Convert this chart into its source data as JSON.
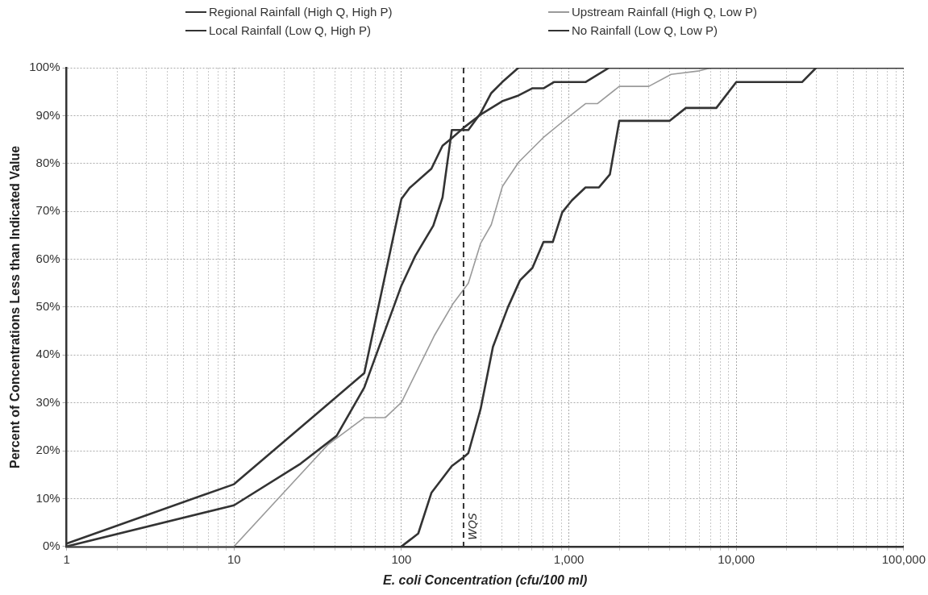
{
  "chart_data": {
    "type": "line",
    "xlabel": "E. coli Concentration (cfu/100 ml)",
    "ylabel": "Percent of Concentrations Less than Indicated Value",
    "log": "x",
    "grid": true,
    "legend": "top",
    "marker": "none",
    "line_style": "solid",
    "xlim": [
      1,
      100000
    ],
    "xticks": [
      {
        "value": 1,
        "label": "1"
      },
      {
        "value": 2,
        "label": null
      },
      {
        "value": 3,
        "label": null
      },
      {
        "value": 4,
        "label": null
      },
      {
        "value": 5,
        "label": null
      },
      {
        "value": 6,
        "label": null
      },
      {
        "value": 7,
        "label": null
      },
      {
        "value": 8,
        "label": null
      },
      {
        "value": 9,
        "label": null
      },
      {
        "value": 10,
        "label": "10"
      },
      {
        "value": 20,
        "label": null
      },
      {
        "value": 30,
        "label": null
      },
      {
        "value": 40,
        "label": null
      },
      {
        "value": 50,
        "label": null
      },
      {
        "value": 60,
        "label": null
      },
      {
        "value": 70,
        "label": null
      },
      {
        "value": 80,
        "label": null
      },
      {
        "value": 90,
        "label": null
      },
      {
        "value": 100,
        "label": "100"
      },
      {
        "value": 200,
        "label": null
      },
      {
        "value": 300,
        "label": null
      },
      {
        "value": 400,
        "label": null
      },
      {
        "value": 500,
        "label": null
      },
      {
        "value": 600,
        "label": null
      },
      {
        "value": 700,
        "label": null
      },
      {
        "value": 800,
        "label": null
      },
      {
        "value": 900,
        "label": null
      },
      {
        "value": 1000,
        "label": "1,000"
      },
      {
        "value": 2000,
        "label": null
      },
      {
        "value": 3000,
        "label": null
      },
      {
        "value": 4000,
        "label": null
      },
      {
        "value": 5000,
        "label": null
      },
      {
        "value": 6000,
        "label": null
      },
      {
        "value": 7000,
        "label": null
      },
      {
        "value": 8000,
        "label": null
      },
      {
        "value": 9000,
        "label": null
      },
      {
        "value": 10000,
        "label": "10,000"
      },
      {
        "value": 20000,
        "label": null
      },
      {
        "value": 30000,
        "label": null
      },
      {
        "value": 40000,
        "label": null
      },
      {
        "value": 50000,
        "label": null
      },
      {
        "value": 60000,
        "label": null
      },
      {
        "value": 70000,
        "label": null
      },
      {
        "value": 80000,
        "label": null
      },
      {
        "value": 90000,
        "label": null
      },
      {
        "value": 100000,
        "label": "100,000"
      }
    ],
    "ylim": [
      0,
      100
    ],
    "yticks": [
      {
        "value": 0,
        "label": "0%"
      },
      {
        "value": 10,
        "label": "10%"
      },
      {
        "value": 20,
        "label": "20%"
      },
      {
        "value": 30,
        "label": "30%"
      },
      {
        "value": 40,
        "label": "40%"
      },
      {
        "value": 50,
        "label": "50%"
      },
      {
        "value": 60,
        "label": "60%"
      },
      {
        "value": 70,
        "label": "70%"
      },
      {
        "value": 80,
        "label": "80%"
      },
      {
        "value": 90,
        "label": "90%"
      },
      {
        "value": 100,
        "label": "100%"
      }
    ],
    "ref_lines": [
      {
        "axis": "x",
        "value": 235,
        "label": "WQS",
        "color": "#333333",
        "line_style": "dashed"
      }
    ],
    "series": [
      {
        "name": "Regional Rainfall (High Q, High P)",
        "color": "#333333",
        "x": [
          100,
          126,
          151,
          200,
          238,
          251,
          297,
          352,
          433,
          511,
          606,
          705,
          802,
          913,
          1043,
          1257,
          1513,
          1757,
          2000,
          3990,
          5000,
          7600,
          10000,
          24700,
          30000
        ],
        "values": [
          0,
          2.7,
          11.2,
          16.8,
          18.8,
          19.5,
          28.7,
          41.7,
          50,
          55.6,
          58.2,
          63.6,
          63.6,
          69.8,
          72.3,
          75,
          75,
          77.7,
          88.9,
          88.9,
          91.6,
          91.6,
          97,
          97,
          100
        ]
      },
      {
        "name": "Local Rainfall (Low Q, High P)",
        "color": "#333333",
        "x": [
          1,
          10,
          25,
          41,
          60,
          100,
          121,
          155,
          176,
          200,
          251,
          297,
          344,
          400,
          500,
          100000
        ],
        "values": [
          0,
          8.6,
          17.3,
          23.1,
          33.2,
          54.5,
          60.7,
          67,
          72.9,
          87,
          87,
          90.5,
          94.7,
          97,
          100,
          100
        ]
      },
      {
        "name": "Upstream Rainfall (High Q, Low P)",
        "color": "#9a9a9a",
        "x": [
          1,
          10,
          36.5,
          60,
          80,
          100,
          157,
          204,
          251,
          297,
          344,
          401,
          502,
          703,
          985,
          1257,
          1480,
          2000,
          3000,
          4080,
          5900,
          7100,
          100000
        ],
        "values": [
          0,
          0,
          21.3,
          26.9,
          26.9,
          30.1,
          44,
          50.8,
          55,
          63.3,
          67.2,
          75.2,
          80.3,
          85.4,
          89.6,
          92.5,
          92.5,
          96.1,
          96.1,
          98.6,
          99.3,
          100,
          100
        ]
      },
      {
        "name": "No Rainfall (Low Q, Low P)",
        "color": "#333333",
        "x": [
          1,
          10,
          60,
          100,
          112,
          151,
          176,
          197,
          238,
          297,
          400,
          500,
          604,
          705,
          814,
          1257,
          1740,
          100000
        ],
        "values": [
          0.6,
          13,
          36.2,
          72.6,
          74.9,
          78.9,
          83.7,
          85.1,
          87.6,
          90.2,
          93,
          94.2,
          95.7,
          95.7,
          97,
          97,
          100,
          100
        ]
      }
    ]
  }
}
